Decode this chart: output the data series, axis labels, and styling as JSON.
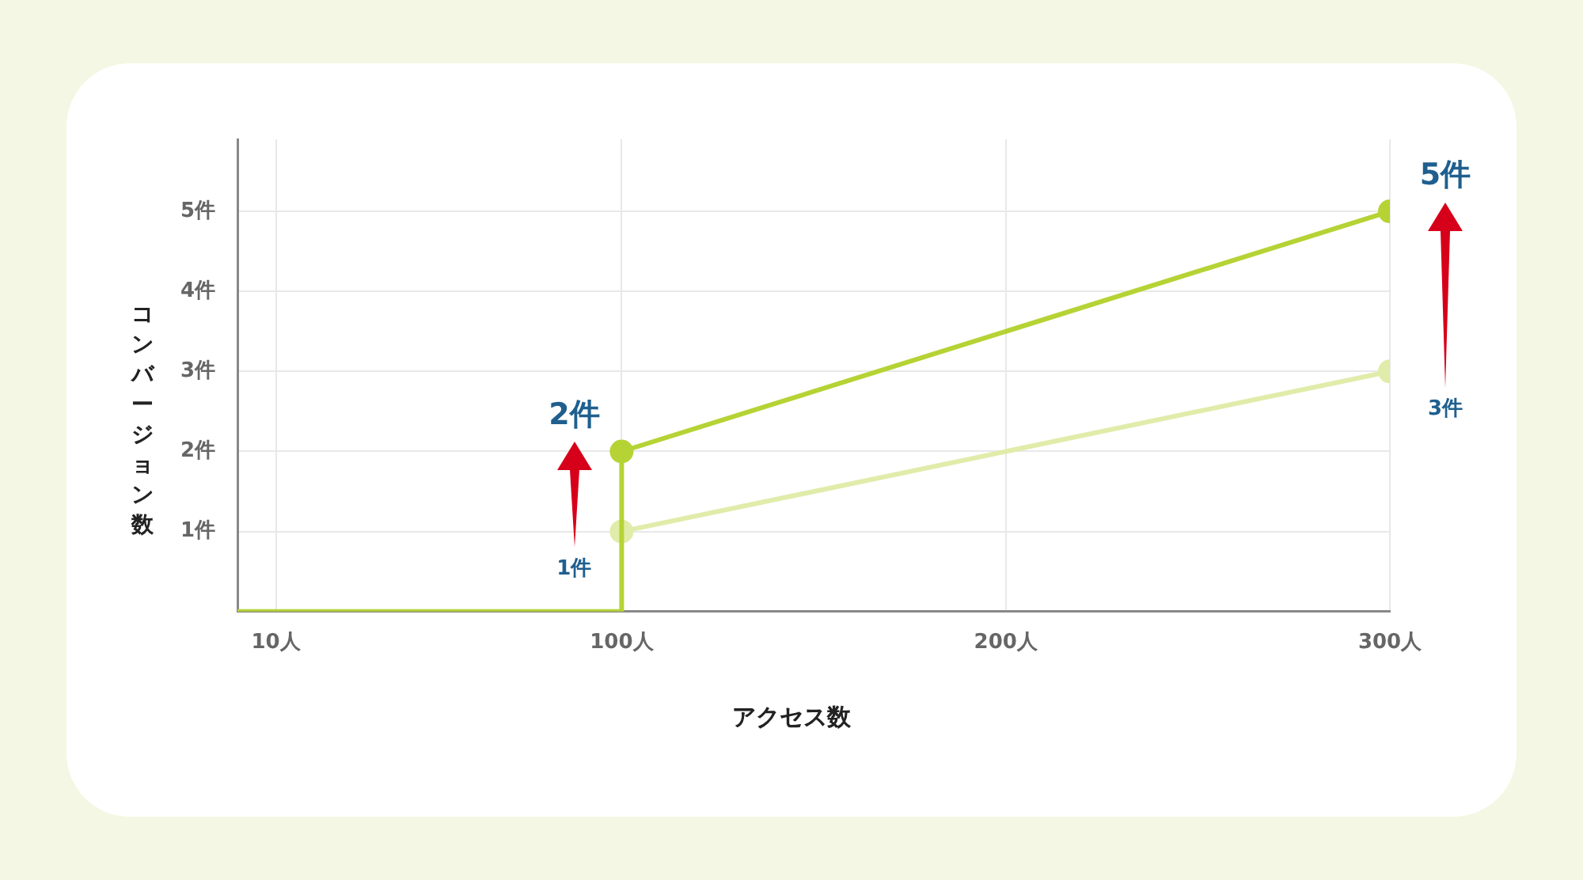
{
  "chart_data": {
    "type": "line",
    "xlabel": "アクセス数",
    "ylabel": "コンバージョン数",
    "xlim": [
      0,
      300
    ],
    "xticks": [
      {
        "value": 10,
        "label": "10人"
      },
      {
        "value": 100,
        "label": "100人"
      },
      {
        "value": 200,
        "label": "200人"
      },
      {
        "value": 300,
        "label": "300人"
      }
    ],
    "ylim": [
      0,
      5.9
    ],
    "yticks": [
      {
        "value": 1,
        "label": "1件"
      },
      {
        "value": 2,
        "label": "2件"
      },
      {
        "value": 3,
        "label": "3件"
      },
      {
        "value": 4,
        "label": "4件"
      },
      {
        "value": 5,
        "label": "5件"
      }
    ],
    "grid": true,
    "series": [
      {
        "color": "#b5d334",
        "x": [
          0,
          100,
          100
        ],
        "values": [
          0,
          0,
          2
        ],
        "marker": "none"
      },
      {
        "color": "#b5d334",
        "x": [
          100,
          300
        ],
        "values": [
          2,
          5
        ],
        "marker": "circle",
        "value_labels": [
          "2件",
          "5件"
        ]
      },
      {
        "color": "#e0eca9",
        "x": [
          100,
          300
        ],
        "values": [
          1,
          3
        ],
        "marker": "circle",
        "value_labels": [
          "1件",
          "3件"
        ]
      }
    ]
  }
}
